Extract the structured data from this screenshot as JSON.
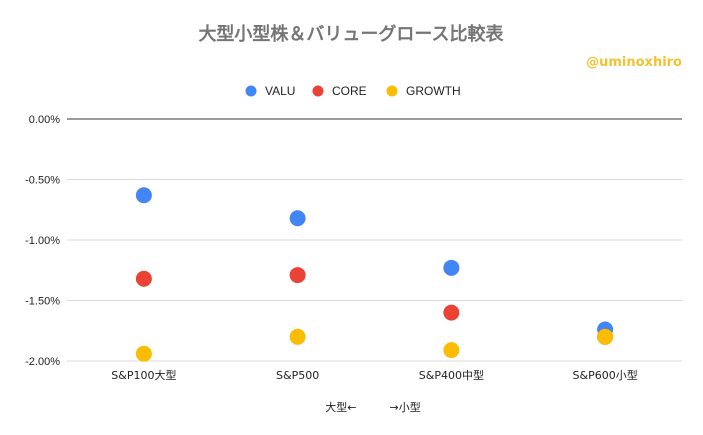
{
  "chart_data": {
    "type": "scatter",
    "title": "大型小型株＆バリューグロース比較表",
    "watermark": "@uminoxhiro",
    "xlabel": "大型←　　　→小型",
    "categories": [
      "S&P100大型",
      "S&P500",
      "S&P400中型",
      "S&P600小型"
    ],
    "y_ticks": [
      "0.00%",
      "-0.50%",
      "-1.00%",
      "-1.50%",
      "-2.00%"
    ],
    "y_tick_values": [
      0,
      -0.5,
      -1.0,
      -1.5,
      -2.0
    ],
    "ylim": [
      -2.0,
      0
    ],
    "grid": true,
    "legend_position": "top",
    "series": [
      {
        "name": "VALU",
        "color": "#4285f4",
        "values": [
          -0.63,
          -0.82,
          -1.23,
          -1.74
        ]
      },
      {
        "name": "CORE",
        "color": "#ea4335",
        "values": [
          -1.32,
          -1.29,
          -1.6,
          -1.8
        ]
      },
      {
        "name": "GROWTH",
        "color": "#fbbc04",
        "values": [
          -1.94,
          -1.8,
          -1.91,
          -1.8
        ]
      }
    ]
  }
}
